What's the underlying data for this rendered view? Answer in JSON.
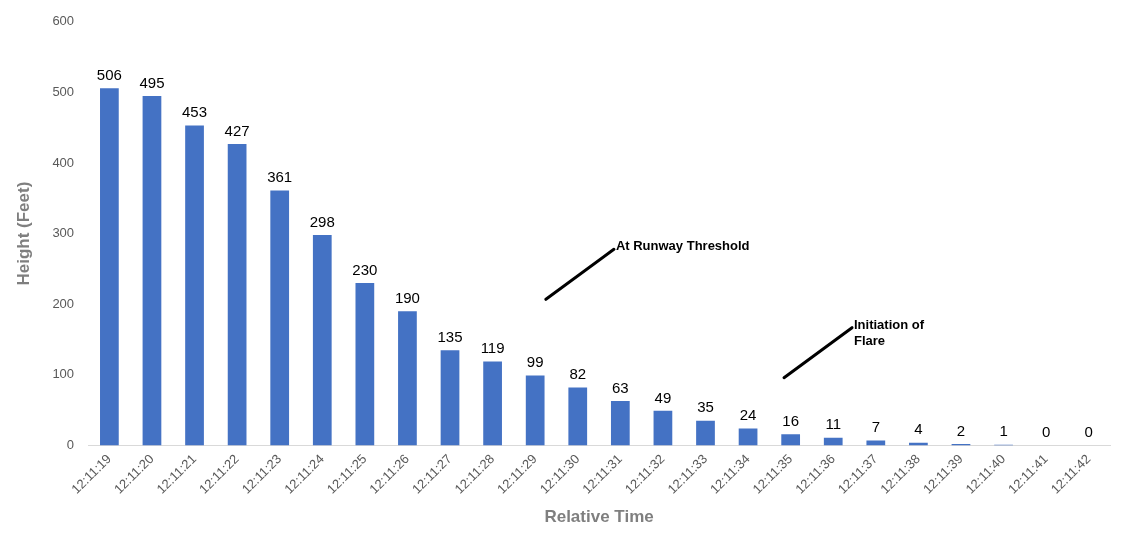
{
  "chart_data": {
    "type": "bar",
    "xlabel": "Relative Time",
    "ylabel": "Height (Feet)",
    "categories": [
      "12:11:19",
      "12:11:20",
      "12:11:21",
      "12:11:22",
      "12:11:23",
      "12:11:24",
      "12:11:25",
      "12:11:26",
      "12:11:27",
      "12:11:28",
      "12:11:29",
      "12:11:30",
      "12:11:31",
      "12:11:32",
      "12:11:33",
      "12:11:34",
      "12:11:35",
      "12:11:36",
      "12:11:37",
      "12:11:38",
      "12:11:39",
      "12:11:40",
      "12:11:41",
      "12:11:42"
    ],
    "values": [
      506,
      495,
      453,
      427,
      361,
      298,
      230,
      190,
      135,
      119,
      99,
      82,
      63,
      49,
      35,
      24,
      16,
      11,
      7,
      4,
      2,
      1,
      0,
      0
    ],
    "color": "#4472c4",
    "data_labels": true,
    "grid": false,
    "legend": false,
    "ylim": [
      0,
      600
    ],
    "yticks": [
      0,
      100,
      200,
      300,
      400,
      500,
      600
    ],
    "annotations": [
      "At Runway Threshold",
      "Initiation of\nFlare"
    ]
  }
}
